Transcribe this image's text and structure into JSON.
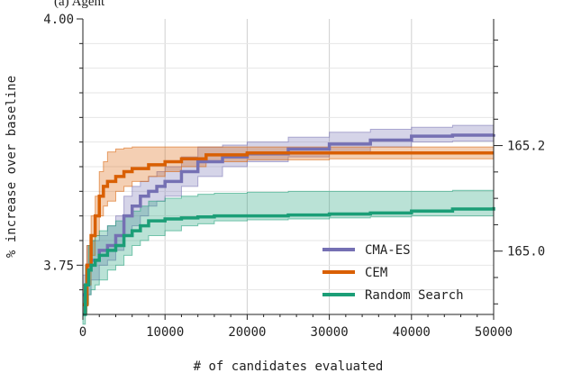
{
  "caption": "(a) Agent",
  "chart_data": {
    "type": "line",
    "xlabel": "# of candidates evaluated",
    "ylabel": "% increase over baseline",
    "xlim": [
      0,
      50000
    ],
    "ylim": [
      3.7,
      4.0
    ],
    "xticks": [
      0,
      10000,
      20000,
      30000,
      40000,
      50000
    ],
    "xtick_labels": [
      "0",
      "10000",
      "20000",
      "30000",
      "40000",
      "50000"
    ],
    "yticks_labeled": [
      3.75,
      4.0
    ],
    "ytick_labels": [
      "3.75",
      "4.00"
    ],
    "yticks_minor": [
      3.7,
      3.725,
      3.775,
      3.8,
      3.825,
      3.85,
      3.875,
      3.9,
      3.925,
      3.95,
      3.975
    ],
    "y2lim": [
      164.88,
      165.44
    ],
    "y2ticks_labeled": [
      165.0,
      165.2
    ],
    "y2tick_labels": [
      "165.0",
      "165.2"
    ],
    "y2ticks_minor": [
      164.9,
      164.95,
      165.05,
      165.1,
      165.15,
      165.25,
      165.3,
      165.35,
      165.4
    ],
    "grid": true,
    "legend_position": "bottom-right",
    "series": [
      {
        "name": "CMA-ES",
        "color": "#7570b3",
        "x": [
          0,
          500,
          1000,
          2000,
          3000,
          4000,
          5000,
          6000,
          7000,
          8000,
          9000,
          10000,
          12000,
          14000,
          17000,
          20000,
          25000,
          30000,
          35000,
          40000,
          45000,
          50000
        ],
        "y": [
          3.72,
          3.75,
          3.755,
          3.765,
          3.77,
          3.78,
          3.8,
          3.81,
          3.82,
          3.825,
          3.83,
          3.835,
          3.845,
          3.855,
          3.86,
          3.863,
          3.868,
          3.873,
          3.877,
          3.881,
          3.882,
          3.883
        ],
        "lower": [
          3.7,
          3.72,
          3.735,
          3.75,
          3.755,
          3.765,
          3.78,
          3.79,
          3.8,
          3.81,
          3.815,
          3.82,
          3.83,
          3.84,
          3.85,
          3.855,
          3.86,
          3.865,
          3.87,
          3.875,
          3.876,
          3.876
        ],
        "upper": [
          3.74,
          3.77,
          3.775,
          3.78,
          3.79,
          3.8,
          3.82,
          3.83,
          3.835,
          3.84,
          3.845,
          3.85,
          3.86,
          3.87,
          3.872,
          3.875,
          3.88,
          3.885,
          3.888,
          3.89,
          3.892,
          3.892
        ]
      },
      {
        "name": "CEM",
        "color": "#d95f02",
        "x": [
          0,
          500,
          1000,
          1500,
          2000,
          2500,
          3000,
          4000,
          5000,
          6000,
          8000,
          10000,
          12000,
          15000,
          20000,
          30000,
          40000,
          50000
        ],
        "y": [
          3.71,
          3.75,
          3.78,
          3.8,
          3.82,
          3.83,
          3.835,
          3.84,
          3.845,
          3.848,
          3.852,
          3.855,
          3.858,
          3.862,
          3.864,
          3.864,
          3.864,
          3.864
        ],
        "lower": [
          3.7,
          3.73,
          3.76,
          3.78,
          3.8,
          3.81,
          3.815,
          3.825,
          3.83,
          3.835,
          3.84,
          3.845,
          3.85,
          3.855,
          3.857,
          3.858,
          3.858,
          3.858
        ],
        "upper": [
          3.73,
          3.77,
          3.8,
          3.82,
          3.845,
          3.855,
          3.865,
          3.868,
          3.869,
          3.87,
          3.87,
          3.87,
          3.87,
          3.87,
          3.87,
          3.87,
          3.87,
          3.87
        ]
      },
      {
        "name": "Random Search",
        "color": "#1b9e77",
        "x": [
          0,
          300,
          700,
          1000,
          1500,
          2000,
          3000,
          4000,
          5000,
          6000,
          7000,
          8000,
          10000,
          12000,
          14000,
          16000,
          20000,
          25000,
          30000,
          35000,
          40000,
          45000,
          50000
        ],
        "y": [
          3.7,
          3.73,
          3.745,
          3.75,
          3.755,
          3.76,
          3.765,
          3.77,
          3.78,
          3.785,
          3.79,
          3.795,
          3.797,
          3.798,
          3.799,
          3.8,
          3.8,
          3.801,
          3.802,
          3.803,
          3.805,
          3.807,
          3.809
        ],
        "lower": [
          3.69,
          3.71,
          3.72,
          3.725,
          3.73,
          3.735,
          3.745,
          3.75,
          3.76,
          3.77,
          3.775,
          3.78,
          3.785,
          3.79,
          3.792,
          3.795,
          3.796,
          3.797,
          3.798,
          3.799,
          3.8,
          3.8,
          3.8
        ],
        "upper": [
          3.72,
          3.75,
          3.77,
          3.775,
          3.78,
          3.785,
          3.79,
          3.795,
          3.8,
          3.805,
          3.81,
          3.815,
          3.818,
          3.82,
          3.822,
          3.823,
          3.824,
          3.825,
          3.825,
          3.825,
          3.825,
          3.826,
          3.826
        ]
      }
    ]
  }
}
